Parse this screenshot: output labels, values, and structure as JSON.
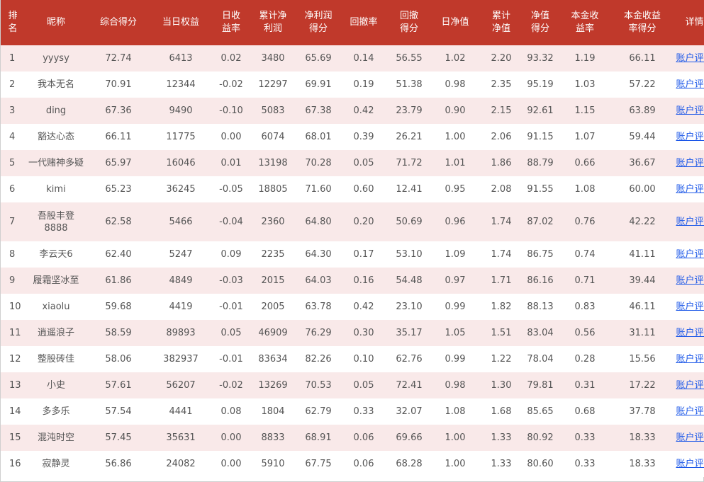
{
  "table": {
    "headers": [
      "排名",
      "昵称",
      "综合得分",
      "当日权益",
      "日收益率",
      "累计净利润",
      "净利润得分",
      "回撤率",
      "回撤得分",
      "日净值",
      "累计净值",
      "净值得分",
      "本金收益率",
      "本金收益率得分",
      "详情"
    ],
    "header_lines": [
      [
        "排",
        "名"
      ],
      [
        "昵称"
      ],
      [
        "综合得分"
      ],
      [
        "当日权益"
      ],
      [
        "日收",
        "益率"
      ],
      [
        "累计净",
        "利润"
      ],
      [
        "净利润",
        "得分"
      ],
      [
        "回撤率"
      ],
      [
        "回撤",
        "得分"
      ],
      [
        "日净值"
      ],
      [
        "累计",
        "净值"
      ],
      [
        "净值",
        "得分"
      ],
      [
        "本金收",
        "益率"
      ],
      [
        "本金收益",
        "率得分"
      ],
      [
        "详情"
      ]
    ],
    "link_label": "账户评估",
    "rows": [
      {
        "rank": "1",
        "name": [
          "yyysy"
        ],
        "score": "72.74",
        "equity": "6413",
        "daily_return": "0.02",
        "cum_profit": "3480",
        "profit_score": "65.69",
        "drawdown": "0.14",
        "dd_score": "56.55",
        "nav": "1.02",
        "cum_nav": "2.20",
        "nav_score": "93.32",
        "principal_return": "1.19",
        "pr_score": "66.11"
      },
      {
        "rank": "2",
        "name": [
          "我本无名"
        ],
        "score": "70.91",
        "equity": "12344",
        "daily_return": "-0.02",
        "cum_profit": "12297",
        "profit_score": "69.91",
        "drawdown": "0.19",
        "dd_score": "51.38",
        "nav": "0.98",
        "cum_nav": "2.35",
        "nav_score": "95.19",
        "principal_return": "1.03",
        "pr_score": "57.22"
      },
      {
        "rank": "3",
        "name": [
          "ding"
        ],
        "score": "67.36",
        "equity": "9490",
        "daily_return": "-0.10",
        "cum_profit": "5083",
        "profit_score": "67.38",
        "drawdown": "0.42",
        "dd_score": "23.79",
        "nav": "0.90",
        "cum_nav": "2.15",
        "nav_score": "92.61",
        "principal_return": "1.15",
        "pr_score": "63.89"
      },
      {
        "rank": "4",
        "name": [
          "豁达心态"
        ],
        "score": "66.11",
        "equity": "11775",
        "daily_return": "0.00",
        "cum_profit": "6074",
        "profit_score": "68.01",
        "drawdown": "0.39",
        "dd_score": "26.21",
        "nav": "1.00",
        "cum_nav": "2.06",
        "nav_score": "91.15",
        "principal_return": "1.07",
        "pr_score": "59.44"
      },
      {
        "rank": "5",
        "name": [
          "一代赌神多疑"
        ],
        "score": "65.97",
        "equity": "16046",
        "daily_return": "0.01",
        "cum_profit": "13198",
        "profit_score": "70.28",
        "drawdown": "0.05",
        "dd_score": "71.72",
        "nav": "1.01",
        "cum_nav": "1.86",
        "nav_score": "88.79",
        "principal_return": "0.66",
        "pr_score": "36.67"
      },
      {
        "rank": "6",
        "name": [
          "kimi"
        ],
        "score": "65.23",
        "equity": "36245",
        "daily_return": "-0.05",
        "cum_profit": "18805",
        "profit_score": "71.60",
        "drawdown": "0.60",
        "dd_score": "12.41",
        "nav": "0.95",
        "cum_nav": "2.08",
        "nav_score": "91.55",
        "principal_return": "1.08",
        "pr_score": "60.00"
      },
      {
        "rank": "7",
        "name": [
          "吾股丰登",
          "8888"
        ],
        "score": "62.58",
        "equity": "5466",
        "daily_return": "-0.04",
        "cum_profit": "2360",
        "profit_score": "64.80",
        "drawdown": "0.20",
        "dd_score": "50.69",
        "nav": "0.96",
        "cum_nav": "1.74",
        "nav_score": "87.02",
        "principal_return": "0.76",
        "pr_score": "42.22"
      },
      {
        "rank": "8",
        "name": [
          "李云天6"
        ],
        "score": "62.40",
        "equity": "5247",
        "daily_return": "0.09",
        "cum_profit": "2235",
        "profit_score": "64.30",
        "drawdown": "0.17",
        "dd_score": "53.10",
        "nav": "1.09",
        "cum_nav": "1.74",
        "nav_score": "86.75",
        "principal_return": "0.74",
        "pr_score": "41.11"
      },
      {
        "rank": "9",
        "name": [
          "履霜坚冰至"
        ],
        "score": "61.86",
        "equity": "4849",
        "daily_return": "-0.03",
        "cum_profit": "2015",
        "profit_score": "64.03",
        "drawdown": "0.16",
        "dd_score": "54.48",
        "nav": "0.97",
        "cum_nav": "1.71",
        "nav_score": "86.16",
        "principal_return": "0.71",
        "pr_score": "39.44"
      },
      {
        "rank": "10",
        "name": [
          "xiaolu"
        ],
        "score": "59.68",
        "equity": "4419",
        "daily_return": "-0.01",
        "cum_profit": "2005",
        "profit_score": "63.78",
        "drawdown": "0.42",
        "dd_score": "23.10",
        "nav": "0.99",
        "cum_nav": "1.82",
        "nav_score": "88.13",
        "principal_return": "0.83",
        "pr_score": "46.11"
      },
      {
        "rank": "11",
        "name": [
          "逍遥浪子"
        ],
        "score": "58.59",
        "equity": "89893",
        "daily_return": "0.05",
        "cum_profit": "46909",
        "profit_score": "76.29",
        "drawdown": "0.30",
        "dd_score": "35.17",
        "nav": "1.05",
        "cum_nav": "1.51",
        "nav_score": "83.04",
        "principal_return": "0.56",
        "pr_score": "31.11"
      },
      {
        "rank": "12",
        "name": [
          "整股砖佳"
        ],
        "score": "58.06",
        "equity": "382937",
        "daily_return": "-0.01",
        "cum_profit": "83634",
        "profit_score": "82.26",
        "drawdown": "0.10",
        "dd_score": "62.76",
        "nav": "0.99",
        "cum_nav": "1.22",
        "nav_score": "78.04",
        "principal_return": "0.28",
        "pr_score": "15.56"
      },
      {
        "rank": "13",
        "name": [
          "小史"
        ],
        "score": "57.61",
        "equity": "56207",
        "daily_return": "-0.02",
        "cum_profit": "13269",
        "profit_score": "70.53",
        "drawdown": "0.05",
        "dd_score": "72.41",
        "nav": "0.98",
        "cum_nav": "1.30",
        "nav_score": "79.81",
        "principal_return": "0.31",
        "pr_score": "17.22"
      },
      {
        "rank": "14",
        "name": [
          "多多乐"
        ],
        "score": "57.54",
        "equity": "4441",
        "daily_return": "0.08",
        "cum_profit": "1804",
        "profit_score": "62.79",
        "drawdown": "0.33",
        "dd_score": "32.07",
        "nav": "1.08",
        "cum_nav": "1.68",
        "nav_score": "85.65",
        "principal_return": "0.68",
        "pr_score": "37.78"
      },
      {
        "rank": "15",
        "name": [
          "混沌时空"
        ],
        "score": "57.45",
        "equity": "35631",
        "daily_return": "0.00",
        "cum_profit": "8833",
        "profit_score": "68.91",
        "drawdown": "0.06",
        "dd_score": "69.66",
        "nav": "1.00",
        "cum_nav": "1.33",
        "nav_score": "80.92",
        "principal_return": "0.33",
        "pr_score": "18.33"
      },
      {
        "rank": "16",
        "name": [
          "寂静灵"
        ],
        "score": "56.86",
        "equity": "24082",
        "daily_return": "0.00",
        "cum_profit": "5910",
        "profit_score": "67.75",
        "drawdown": "0.06",
        "dd_score": "68.28",
        "nav": "1.00",
        "cum_nav": "1.33",
        "nav_score": "80.60",
        "principal_return": "0.33",
        "pr_score": "18.33"
      }
    ]
  },
  "colors": {
    "header_bg": "#c0392b",
    "header_text": "#ffffff",
    "row_stripe": "#f9e9e9",
    "link": "#1a56e8",
    "cell_text": "#555555"
  }
}
